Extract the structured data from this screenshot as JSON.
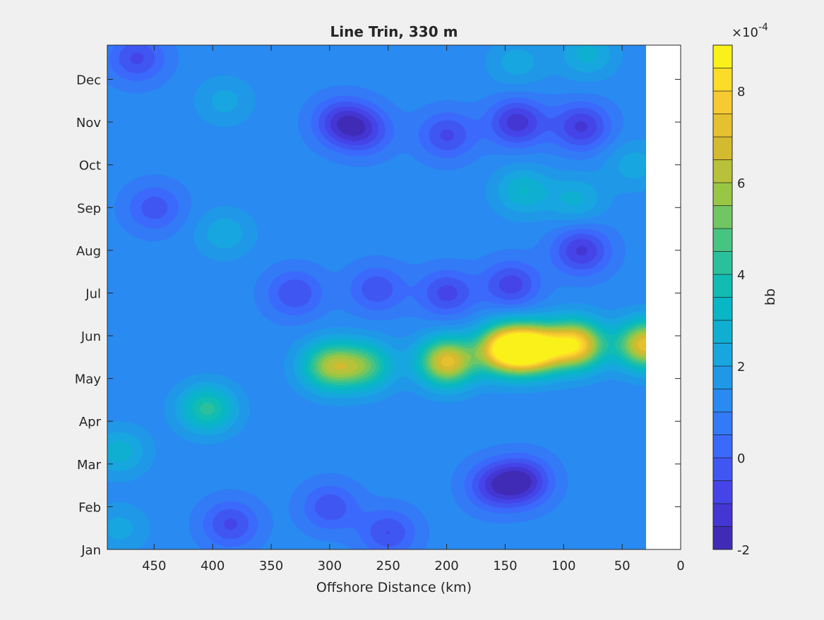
{
  "chart_data": {
    "type": "contour",
    "title": "Line Trin, 330 m",
    "xlabel": "Offshore Distance (km)",
    "ylabel": "",
    "xlim": [
      490,
      0
    ],
    "x_reversed": true,
    "x_ticks": [
      450,
      400,
      350,
      300,
      250,
      200,
      150,
      100,
      50,
      0
    ],
    "y_ticks": [
      "Jan",
      "Feb",
      "Mar",
      "Apr",
      "May",
      "Jun",
      "Jul",
      "Aug",
      "Sep",
      "Oct",
      "Nov",
      "Dec"
    ],
    "data_coverage_x_km": [
      490,
      30
    ],
    "colorbar": {
      "label": "bb",
      "exponent_label": "×10",
      "exponent": "-4",
      "range": [
        -2,
        9
      ],
      "ticks": [
        "-2",
        "0",
        "2",
        "4",
        "6",
        "8"
      ],
      "levels": 22,
      "colormap": "parula"
    },
    "background_level": 1.2,
    "features": [
      {
        "x": 405,
        "month": 3.3,
        "value": 4.2
      },
      {
        "x": 300,
        "month": 4.3,
        "value": 5.6
      },
      {
        "x": 270,
        "month": 4.3,
        "value": 4.6
      },
      {
        "x": 200,
        "month": 4.4,
        "value": 7.2
      },
      {
        "x": 150,
        "month": 4.7,
        "value": 8.8
      },
      {
        "x": 125,
        "month": 4.7,
        "value": 8.5
      },
      {
        "x": 90,
        "month": 4.8,
        "value": 8.0
      },
      {
        "x": 30,
        "month": 4.8,
        "value": 7.4
      },
      {
        "x": 135,
        "month": 1.6,
        "value": -1.4
      },
      {
        "x": 160,
        "month": 1.5,
        "value": -0.8
      },
      {
        "x": 300,
        "month": 1.0,
        "value": -0.4
      },
      {
        "x": 250,
        "month": 0.4,
        "value": -0.5
      },
      {
        "x": 385,
        "month": 0.6,
        "value": -0.6
      },
      {
        "x": 480,
        "month": 2.3,
        "value": 2.8
      },
      {
        "x": 480,
        "month": 0.5,
        "value": 2.2
      },
      {
        "x": 465,
        "month": 11.5,
        "value": -0.6
      },
      {
        "x": 450,
        "month": 8.0,
        "value": -0.3
      },
      {
        "x": 330,
        "month": 6.0,
        "value": -0.5
      },
      {
        "x": 260,
        "month": 6.1,
        "value": -0.4
      },
      {
        "x": 200,
        "month": 6.0,
        "value": -0.7
      },
      {
        "x": 145,
        "month": 6.2,
        "value": -0.8
      },
      {
        "x": 85,
        "month": 7.0,
        "value": -1.1
      },
      {
        "x": 290,
        "month": 10.0,
        "value": -1.0
      },
      {
        "x": 270,
        "month": 9.8,
        "value": -0.5
      },
      {
        "x": 200,
        "month": 9.7,
        "value": -0.6
      },
      {
        "x": 140,
        "month": 10.0,
        "value": -1.3
      },
      {
        "x": 85,
        "month": 9.9,
        "value": -1.1
      },
      {
        "x": 390,
        "month": 7.4,
        "value": 2.4
      },
      {
        "x": 135,
        "month": 8.4,
        "value": 3.0
      },
      {
        "x": 90,
        "month": 8.2,
        "value": 2.6
      },
      {
        "x": 80,
        "month": 11.6,
        "value": 2.7
      },
      {
        "x": 140,
        "month": 11.4,
        "value": 2.3
      },
      {
        "x": 40,
        "month": 9.0,
        "value": 2.3
      },
      {
        "x": 390,
        "month": 10.5,
        "value": 2.2
      }
    ]
  }
}
